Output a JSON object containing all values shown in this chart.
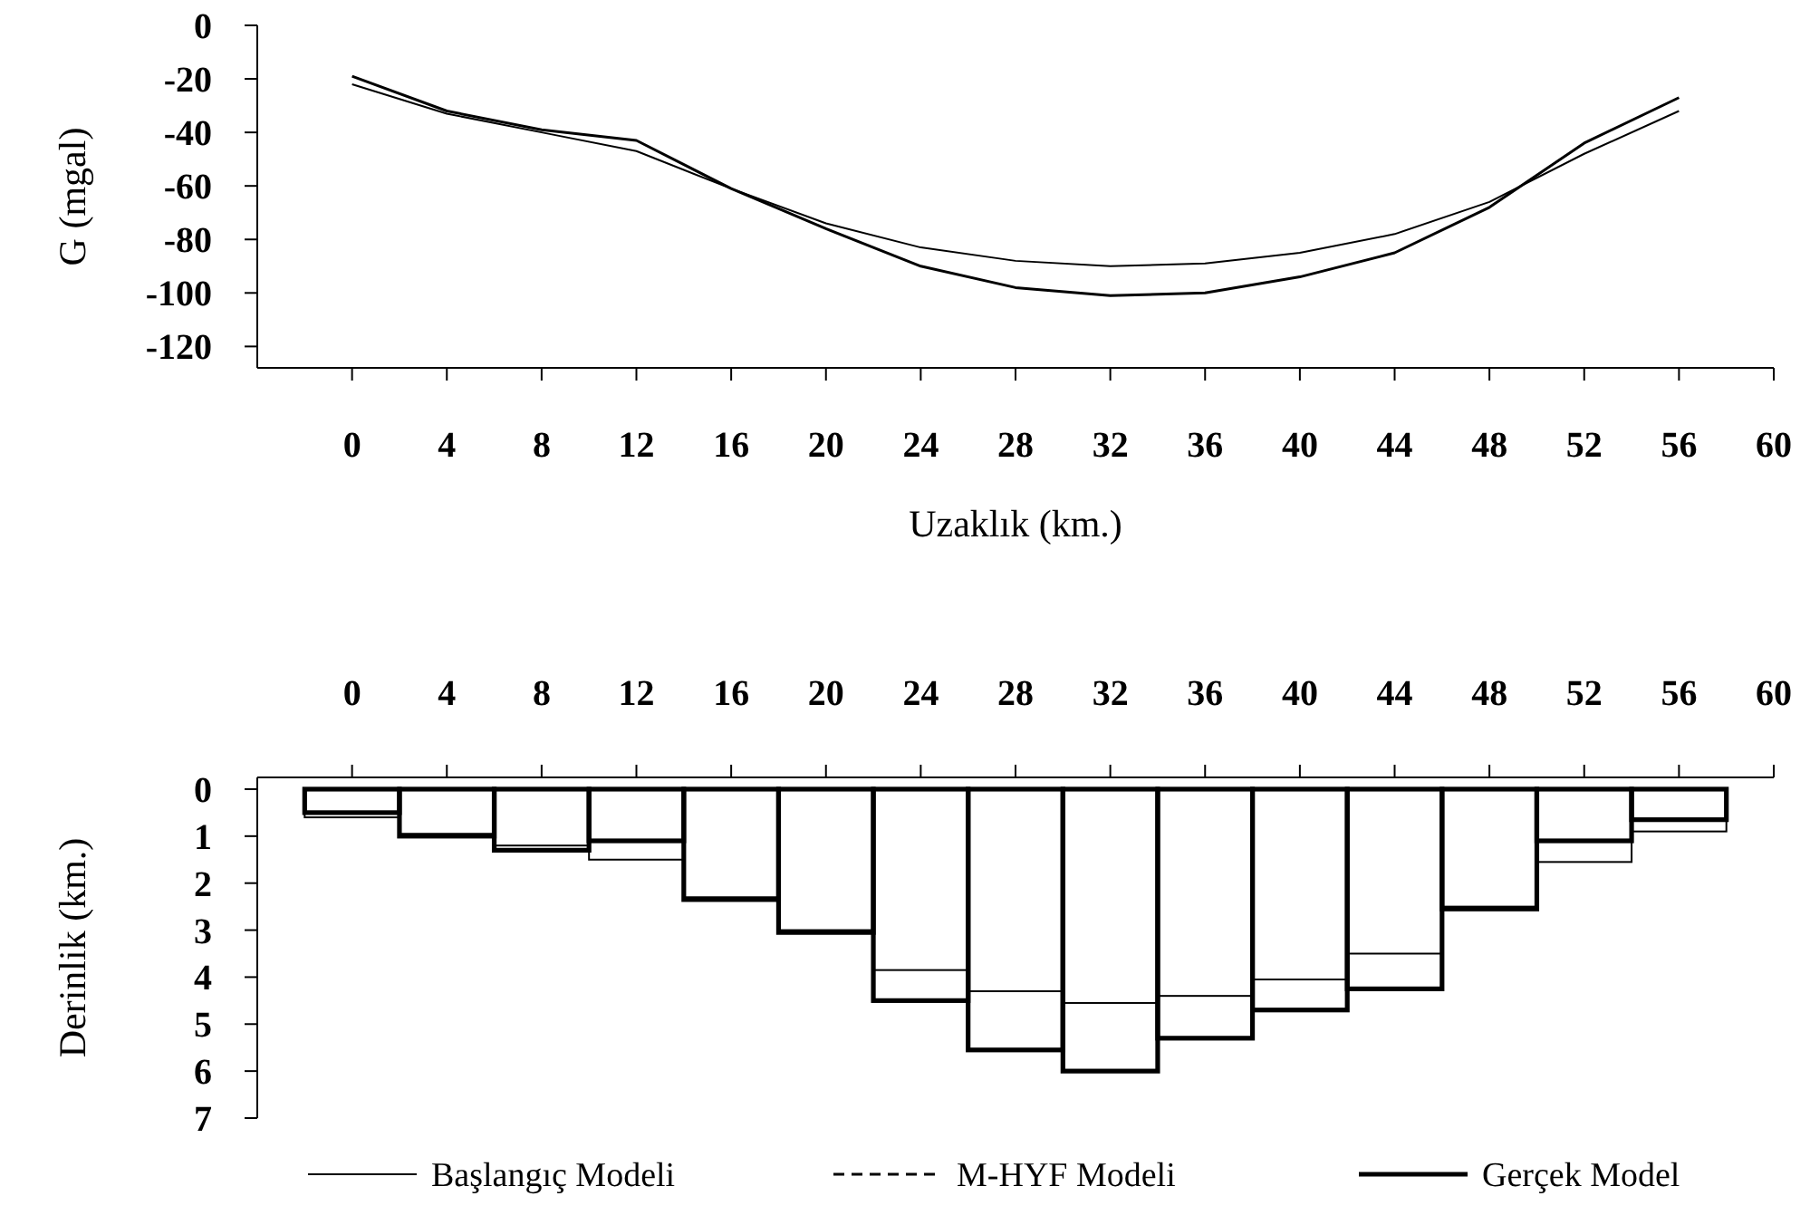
{
  "chart_data": [
    {
      "type": "line",
      "xlabel": "Uzaklık (km.)",
      "ylabel": "G (mgal)",
      "x": [
        0,
        4,
        8,
        12,
        16,
        20,
        24,
        28,
        32,
        36,
        40,
        44,
        48,
        52,
        56
      ],
      "series": [
        {
          "color": "#000000",
          "values": [
            -22,
            -33,
            -40,
            -47,
            -61,
            -74,
            -83,
            -88,
            -90,
            -89,
            -85,
            -78,
            -66,
            -48,
            -32
          ]
        },
        {
          "color": "#000000",
          "values": [
            -19,
            -32,
            -39,
            -43,
            -61,
            -76,
            -90,
            -98,
            -101,
            -100,
            -94,
            -85,
            -68,
            -44,
            -27
          ]
        }
      ],
      "xlim": [
        -4,
        60
      ],
      "xticks": [
        0,
        4,
        8,
        12,
        16,
        20,
        24,
        28,
        32,
        36,
        40,
        44,
        48,
        52,
        56,
        60
      ],
      "ylim": [
        -128,
        0
      ],
      "yticks": [
        0,
        -20,
        -40,
        -60,
        -80,
        -100,
        -120
      ],
      "grid": false,
      "legend": false,
      "marker": "none"
    },
    {
      "type": "bar",
      "ylabel": "Derinlik (km.)",
      "x": [
        0,
        4,
        8,
        12,
        16,
        20,
        24,
        28,
        32,
        36,
        40,
        44,
        48,
        52,
        56
      ],
      "series": [
        {
          "name": "Başlangıç Modeli",
          "color": "#000000",
          "values": [
            0.6,
            0.95,
            1.2,
            1.5,
            2.3,
            3.0,
            3.85,
            4.3,
            4.55,
            4.4,
            4.05,
            3.5,
            2.5,
            1.55,
            0.9
          ]
        },
        {
          "name": "M-HYF Modeli",
          "color": "#000000",
          "line_style": "dashed",
          "values": [
            null,
            null,
            null,
            null,
            null,
            null,
            null,
            null,
            null,
            null,
            null,
            null,
            null,
            null,
            null
          ]
        },
        {
          "name": "Gerçek Model",
          "color": "#000000",
          "values": [
            0.5,
            1.0,
            1.3,
            1.1,
            2.35,
            3.05,
            4.5,
            5.55,
            6.0,
            5.3,
            4.7,
            4.25,
            2.55,
            1.1,
            0.65
          ]
        }
      ],
      "xlim": [
        -4,
        60
      ],
      "xticks": [
        0,
        4,
        8,
        12,
        16,
        20,
        24,
        28,
        32,
        36,
        40,
        44,
        48,
        52,
        56,
        60
      ],
      "ylim": [
        7,
        -0.25
      ],
      "yticks": [
        0,
        1,
        2,
        3,
        4,
        5,
        6,
        7
      ],
      "grid": false,
      "legend": "bottom"
    }
  ]
}
